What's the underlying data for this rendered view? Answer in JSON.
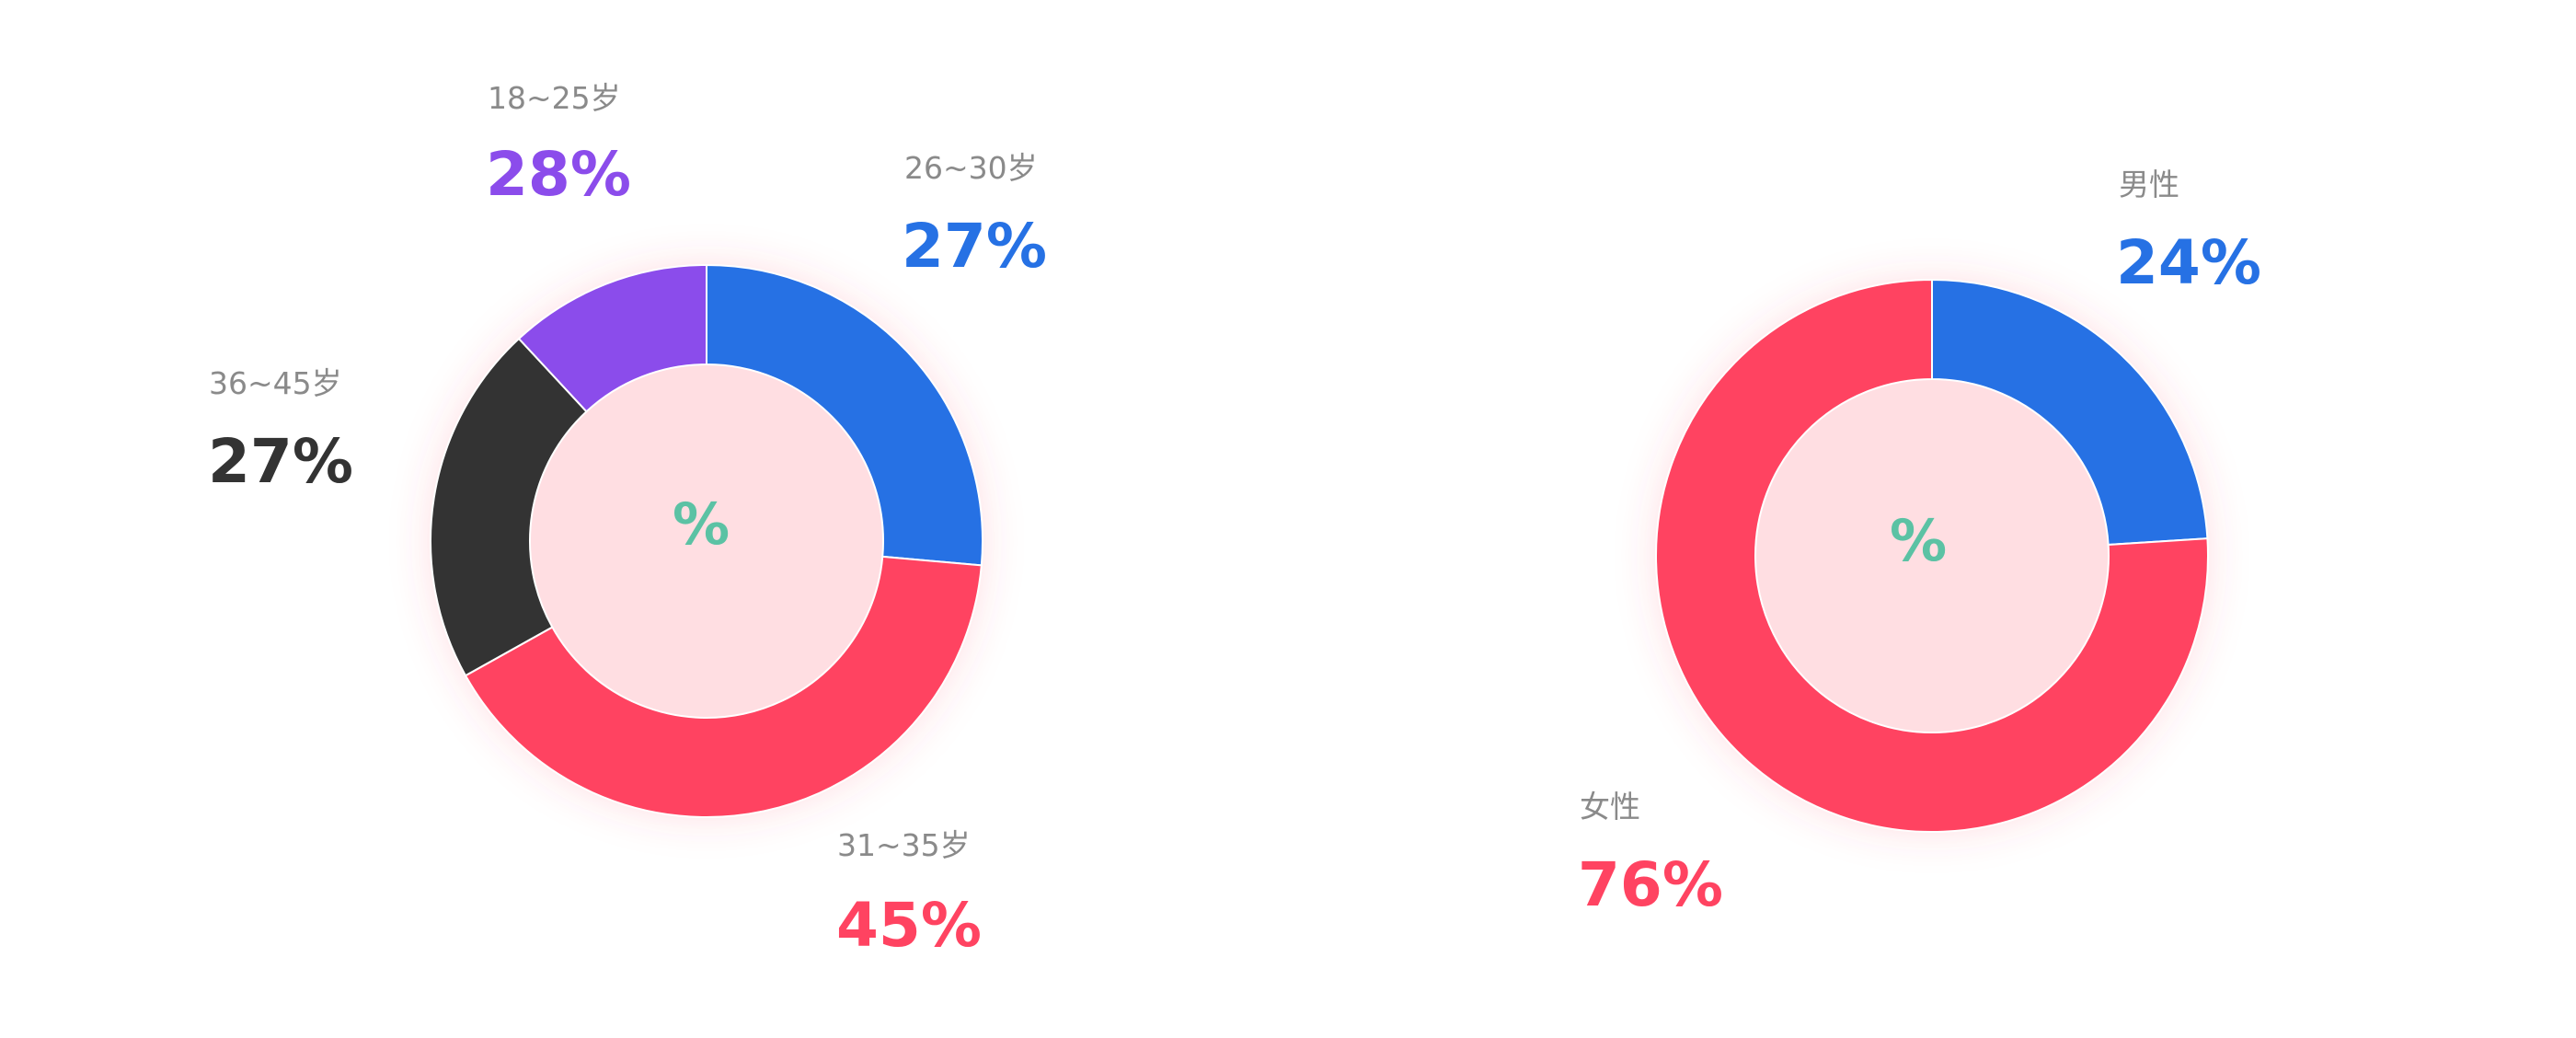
{
  "colors": {
    "blue": "#2671E4",
    "red": "#FF4361",
    "dark": "#333333",
    "purple": "#8B4CEB",
    "teal": "#5BC2A4",
    "muted": "#8A8A8A"
  },
  "chart_data": [
    {
      "type": "pie",
      "variant": "donut",
      "center_text": "%",
      "categories": [
        "26~30岁",
        "31~35岁",
        "36~45岁",
        "18~25岁"
      ],
      "values": [
        27,
        45,
        27,
        28
      ],
      "labels": [
        "27%",
        "45%",
        "27%",
        "28%"
      ],
      "colors": [
        "#2671E4",
        "#FF4361",
        "#333333",
        "#8B4CEB"
      ],
      "slice_sizes_percent": [
        26.4,
        40.5,
        21.2,
        11.9
      ]
    },
    {
      "type": "pie",
      "variant": "donut",
      "center_text": "%",
      "categories": [
        "男性",
        "女性"
      ],
      "values": [
        24,
        76
      ],
      "labels": [
        "24%",
        "76%"
      ],
      "colors": [
        "#2671E4",
        "#FF4361"
      ],
      "slice_sizes_percent": [
        24,
        76
      ]
    }
  ]
}
